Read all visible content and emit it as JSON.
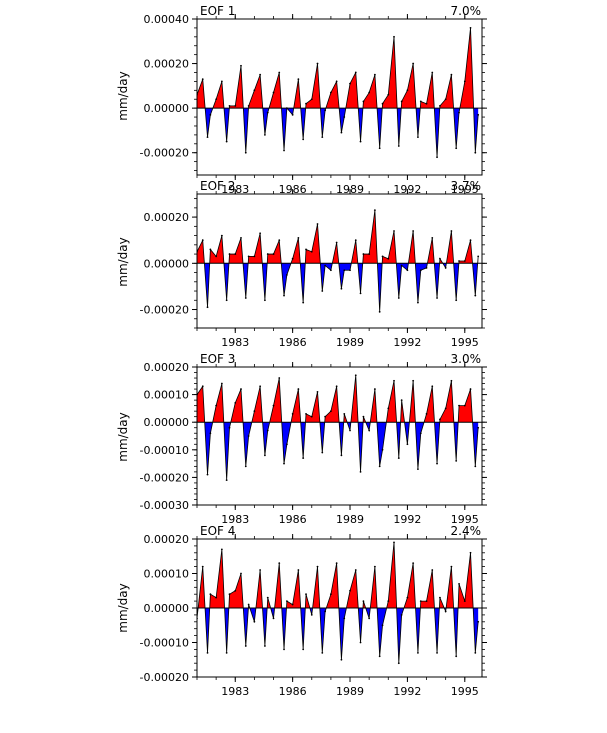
{
  "chart_data": [
    {
      "type": "area",
      "title": "EOF 1",
      "variance_label": "7.0%",
      "ylabel": "mm/day",
      "ylim": [
        -0.0003,
        0.0004
      ],
      "yticks": [
        -0.0002,
        0.0,
        0.0002,
        0.0004
      ],
      "ytick_labels": [
        "-0.00020",
        "0.00000",
        "0.00020",
        "0.00040"
      ],
      "xlim": [
        1981.0,
        1995.9
      ],
      "xticks": [
        1983,
        1986,
        1989,
        1992,
        1995
      ],
      "xtick_labels": [
        "1983",
        "1986",
        "1989",
        "1992",
        "1995"
      ],
      "grid": false,
      "positive_color": "#ff0000",
      "negative_color": "#0000ff",
      "line_color": "#000000",
      "series": [
        {
          "x": [
            1981.0,
            1981.3,
            1981.55,
            1981.7,
            1982.0,
            1982.3,
            1982.55,
            1982.7,
            1983.0,
            1983.3,
            1983.55,
            1983.7,
            1984.0,
            1984.3,
            1984.55,
            1984.7,
            1985.0,
            1985.3,
            1985.55,
            1985.7,
            1986.0,
            1986.3,
            1986.55,
            1986.7,
            1987.0,
            1987.3,
            1987.55,
            1987.7,
            1988.0,
            1988.3,
            1988.55,
            1988.7,
            1989.0,
            1989.3,
            1989.55,
            1989.7,
            1990.0,
            1990.3,
            1990.55,
            1990.7,
            1991.0,
            1991.3,
            1991.55,
            1991.7,
            1992.0,
            1992.3,
            1992.55,
            1992.7,
            1993.0,
            1993.3,
            1993.55,
            1993.7,
            1994.0,
            1994.3,
            1994.55,
            1994.7,
            1995.0,
            1995.3,
            1995.55,
            1995.7
          ],
          "y": [
            6e-05,
            0.00013,
            -0.00013,
            -3e-05,
            4e-05,
            0.00012,
            -0.00015,
            1e-05,
            1e-05,
            0.00019,
            -0.0002,
            1e-05,
            8e-05,
            0.00015,
            -0.00012,
            -2e-05,
            7e-05,
            0.00016,
            -0.00019,
            0.0,
            -3e-05,
            0.00013,
            -0.00014,
            2e-05,
            4e-05,
            0.0002,
            -0.00013,
            -1e-05,
            7e-05,
            0.00012,
            -0.00011,
            -4e-05,
            0.00011,
            0.00016,
            -0.00015,
            3e-05,
            7e-05,
            0.00015,
            -0.00018,
            2e-05,
            6e-05,
            0.00032,
            -0.00017,
            3e-05,
            8e-05,
            0.0002,
            -0.00013,
            3e-05,
            2e-05,
            0.00016,
            -0.00022,
            1e-05,
            4e-05,
            0.00015,
            -0.00018,
            -2e-05,
            0.00012,
            0.00036,
            -0.0002,
            -3e-05
          ]
        }
      ]
    },
    {
      "type": "area",
      "title": "EOF 2",
      "variance_label": "3.7%",
      "ylabel": "mm/day",
      "ylim": [
        -0.00028,
        0.0003
      ],
      "yticks": [
        -0.0002,
        0.0,
        0.0002
      ],
      "ytick_labels": [
        "-0.00020",
        "0.00000",
        "0.00020"
      ],
      "xlim": [
        1981.0,
        1995.9
      ],
      "xticks": [
        1983,
        1986,
        1989,
        1992,
        1995
      ],
      "xtick_labels": [
        "1983",
        "1986",
        "1989",
        "1992",
        "1995"
      ],
      "grid": false,
      "positive_color": "#ff0000",
      "negative_color": "#0000ff",
      "line_color": "#000000",
      "series": [
        {
          "x": [
            1981.0,
            1981.3,
            1981.55,
            1981.7,
            1982.0,
            1982.3,
            1982.55,
            1982.7,
            1983.0,
            1983.3,
            1983.55,
            1983.7,
            1984.0,
            1984.3,
            1984.55,
            1984.7,
            1985.0,
            1985.3,
            1985.55,
            1985.7,
            1986.0,
            1986.3,
            1986.55,
            1986.7,
            1987.0,
            1987.3,
            1987.55,
            1987.7,
            1988.0,
            1988.3,
            1988.55,
            1988.7,
            1989.0,
            1989.3,
            1989.55,
            1989.7,
            1990.0,
            1990.3,
            1990.55,
            1990.7,
            1991.0,
            1991.3,
            1991.55,
            1991.7,
            1992.0,
            1992.3,
            1992.55,
            1992.7,
            1993.0,
            1993.3,
            1993.55,
            1993.7,
            1994.0,
            1994.3,
            1994.55,
            1994.7,
            1995.0,
            1995.3,
            1995.55,
            1995.7
          ],
          "y": [
            5e-05,
            0.0001,
            -0.00019,
            6e-05,
            3e-05,
            0.00012,
            -0.00016,
            4e-05,
            4e-05,
            0.00011,
            -0.00015,
            3e-05,
            3e-05,
            0.00013,
            -0.00016,
            4e-05,
            4e-05,
            0.0001,
            -0.00014,
            -5e-05,
            2e-05,
            0.00011,
            -0.00017,
            6e-05,
            5e-05,
            0.00017,
            -0.00012,
            -1e-05,
            -3e-05,
            9e-05,
            -0.00011,
            -3e-05,
            -3e-05,
            0.0001,
            -0.00013,
            4e-05,
            4e-05,
            0.00023,
            -0.00021,
            3e-05,
            2e-05,
            0.00014,
            -0.00015,
            -1e-05,
            -3e-05,
            0.00014,
            -0.00017,
            -3e-05,
            -2e-05,
            0.00011,
            -0.00015,
            2e-05,
            -2e-05,
            0.00014,
            -0.00016,
            1e-05,
            1e-05,
            0.0001,
            -0.00014,
            3e-05
          ]
        }
      ]
    },
    {
      "type": "area",
      "title": "EOF 3",
      "variance_label": "3.0%",
      "ylabel": "mm/day",
      "ylim": [
        -0.0003,
        0.0002
      ],
      "yticks": [
        -0.0003,
        -0.0002,
        -0.0001,
        0.0,
        0.0001,
        0.0002
      ],
      "ytick_labels": [
        "-0.00030",
        "-0.00020",
        "-0.00010",
        "0.00000",
        "0.00010",
        "0.00020"
      ],
      "xlim": [
        1981.0,
        1995.9
      ],
      "xticks": [
        1983,
        1986,
        1989,
        1992,
        1995
      ],
      "xtick_labels": [
        "1983",
        "1986",
        "1989",
        "1992",
        "1995"
      ],
      "grid": false,
      "positive_color": "#ff0000",
      "negative_color": "#0000ff",
      "line_color": "#000000",
      "series": [
        {
          "x": [
            1981.0,
            1981.3,
            1981.55,
            1981.7,
            1982.0,
            1982.3,
            1982.55,
            1982.7,
            1983.0,
            1983.3,
            1983.55,
            1983.7,
            1984.0,
            1984.3,
            1984.55,
            1984.7,
            1985.0,
            1985.3,
            1985.55,
            1985.7,
            1986.0,
            1986.3,
            1986.55,
            1986.7,
            1987.0,
            1987.3,
            1987.55,
            1987.7,
            1988.0,
            1988.3,
            1988.55,
            1988.7,
            1989.0,
            1989.3,
            1989.55,
            1989.7,
            1990.0,
            1990.3,
            1990.55,
            1990.7,
            1991.0,
            1991.3,
            1991.55,
            1991.7,
            1992.0,
            1992.3,
            1992.55,
            1992.7,
            1993.0,
            1993.3,
            1993.55,
            1993.7,
            1994.0,
            1994.3,
            1994.55,
            1994.7,
            1995.0,
            1995.3,
            1995.55,
            1995.7
          ],
          "y": [
            0.0001,
            0.00013,
            -0.00019,
            -4e-05,
            6e-05,
            0.00014,
            -0.00021,
            -2e-05,
            7e-05,
            0.00012,
            -0.00016,
            -5e-05,
            4e-05,
            0.00013,
            -0.00012,
            -3e-05,
            6e-05,
            0.00016,
            -0.00015,
            -8e-05,
            3e-05,
            0.00012,
            -0.00013,
            3e-05,
            2e-05,
            0.00011,
            -0.00011,
            2e-05,
            4e-05,
            0.00013,
            -0.00012,
            3e-05,
            -3e-05,
            0.00017,
            -0.00018,
            2e-05,
            -3e-05,
            0.00012,
            -0.00016,
            -0.0001,
            5e-05,
            0.00015,
            -0.00013,
            8e-05,
            -8e-05,
            0.00015,
            -0.00017,
            -4e-05,
            3e-05,
            0.00013,
            -0.00015,
            1e-05,
            5e-05,
            0.00015,
            -0.00014,
            6e-05,
            6e-05,
            0.00012,
            -0.00016,
            -2e-05
          ]
        }
      ]
    },
    {
      "type": "area",
      "title": "EOF 4",
      "variance_label": "2.4%",
      "ylabel": "mm/day",
      "ylim": [
        -0.0002,
        0.0002
      ],
      "yticks": [
        -0.0002,
        -0.0001,
        0.0,
        0.0001,
        0.0002
      ],
      "ytick_labels": [
        "-0.00020",
        "-0.00010",
        "0.00000",
        "0.00010",
        "0.00020"
      ],
      "xlim": [
        1981.0,
        1995.9
      ],
      "xticks": [
        1983,
        1986,
        1989,
        1992,
        1995
      ],
      "xtick_labels": [
        "1983",
        "1986",
        "1989",
        "1992",
        "1995"
      ],
      "grid": false,
      "positive_color": "#ff0000",
      "negative_color": "#0000ff",
      "line_color": "#000000",
      "series": [
        {
          "x": [
            1981.0,
            1981.3,
            1981.55,
            1981.7,
            1982.0,
            1982.3,
            1982.55,
            1982.7,
            1983.0,
            1983.3,
            1983.55,
            1983.7,
            1984.0,
            1984.3,
            1984.55,
            1984.7,
            1985.0,
            1985.3,
            1985.55,
            1985.7,
            1986.0,
            1986.3,
            1986.55,
            1986.7,
            1987.0,
            1987.3,
            1987.55,
            1987.7,
            1988.0,
            1988.3,
            1988.55,
            1988.7,
            1989.0,
            1989.3,
            1989.55,
            1989.7,
            1990.0,
            1990.3,
            1990.55,
            1990.7,
            1991.0,
            1991.3,
            1991.55,
            1991.7,
            1992.0,
            1992.3,
            1992.55,
            1992.7,
            1993.0,
            1993.3,
            1993.55,
            1993.7,
            1994.0,
            1994.3,
            1994.55,
            1994.7,
            1995.0,
            1995.3,
            1995.55,
            1995.7
          ],
          "y": [
            -3e-05,
            0.00012,
            -0.00013,
            4e-05,
            3e-05,
            0.00017,
            -0.00013,
            4e-05,
            5e-05,
            0.0001,
            -0.00011,
            1e-05,
            -4e-05,
            0.00011,
            -0.00011,
            3e-05,
            -3e-05,
            0.00013,
            -0.00012,
            2e-05,
            1e-05,
            0.00011,
            -0.00012,
            4e-05,
            -2e-05,
            0.00012,
            -0.00013,
            -1e-05,
            4e-05,
            0.00013,
            -0.00015,
            -3e-05,
            5e-05,
            0.00011,
            -0.0001,
            2e-05,
            -3e-05,
            0.00012,
            -0.00014,
            -5e-05,
            2e-05,
            0.00019,
            -0.00016,
            -2e-05,
            3e-05,
            0.00013,
            -0.00013,
            2e-05,
            2e-05,
            0.00011,
            -0.00013,
            3e-05,
            -1e-05,
            0.00012,
            -0.00014,
            7e-05,
            2e-05,
            0.00016,
            -0.00013,
            -4e-05
          ]
        }
      ]
    }
  ]
}
